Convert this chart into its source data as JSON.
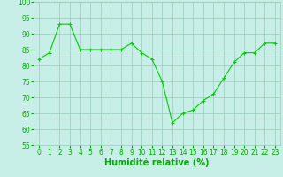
{
  "x": [
    0,
    1,
    2,
    3,
    4,
    5,
    6,
    7,
    8,
    9,
    10,
    11,
    12,
    13,
    14,
    15,
    16,
    17,
    18,
    19,
    20,
    21,
    22,
    23
  ],
  "y": [
    82,
    84,
    93,
    93,
    85,
    85,
    85,
    85,
    85,
    87,
    84,
    82,
    75,
    62,
    65,
    66,
    69,
    71,
    76,
    81,
    84,
    84,
    87,
    87
  ],
  "line_color": "#00cc00",
  "marker": "+",
  "marker_color": "#00cc00",
  "bg_color": "#c8eee8",
  "grid_color": "#99ccbb",
  "xlabel": "Humidité relative (%)",
  "xlabel_color": "#00aa00",
  "xlabel_fontsize": 7,
  "tick_color": "#00aa00",
  "tick_fontsize": 5.5,
  "ylim": [
    55,
    100
  ],
  "xlim": [
    -0.5,
    23.5
  ],
  "yticks": [
    55,
    60,
    65,
    70,
    75,
    80,
    85,
    90,
    95,
    100
  ],
  "xticks": [
    0,
    1,
    2,
    3,
    4,
    5,
    6,
    7,
    8,
    9,
    10,
    11,
    12,
    13,
    14,
    15,
    16,
    17,
    18,
    19,
    20,
    21,
    22,
    23
  ]
}
